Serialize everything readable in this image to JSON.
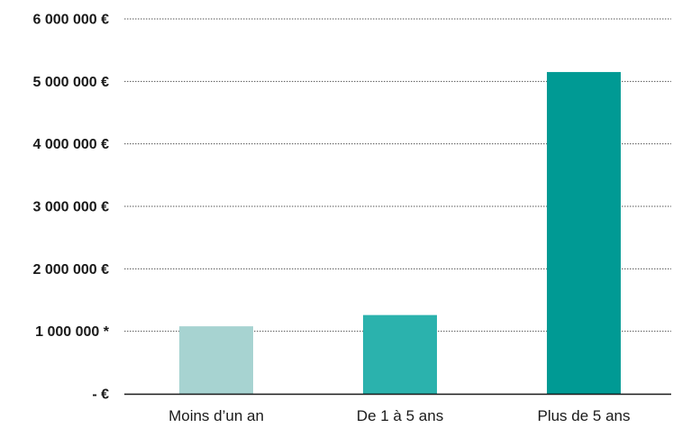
{
  "chart_data": {
    "type": "bar",
    "title": "",
    "xlabel": "",
    "ylabel": "",
    "categories": [
      "Moins d’un an",
      "De 1 à 5 ans",
      "Plus de 5 ans"
    ],
    "values": [
      1080000,
      1260000,
      5150000
    ],
    "colors": [
      "#a7d3d1",
      "#2bb2ad",
      "#009a94"
    ],
    "ylim": [
      0,
      6000000
    ],
    "y_ticks": [
      {
        "value": 0,
        "label": "- €"
      },
      {
        "value": 1000000,
        "label": "1 000 000 *"
      },
      {
        "value": 2000000,
        "label": "2 000 000 €"
      },
      {
        "value": 3000000,
        "label": "3 000 000 €"
      },
      {
        "value": 4000000,
        "label": "4 000 000 €"
      },
      {
        "value": 5000000,
        "label": "5 000 000 €"
      },
      {
        "value": 6000000,
        "label": "6 000 000 €"
      }
    ],
    "grid": true,
    "grid_style": "dotted",
    "legend": false
  }
}
